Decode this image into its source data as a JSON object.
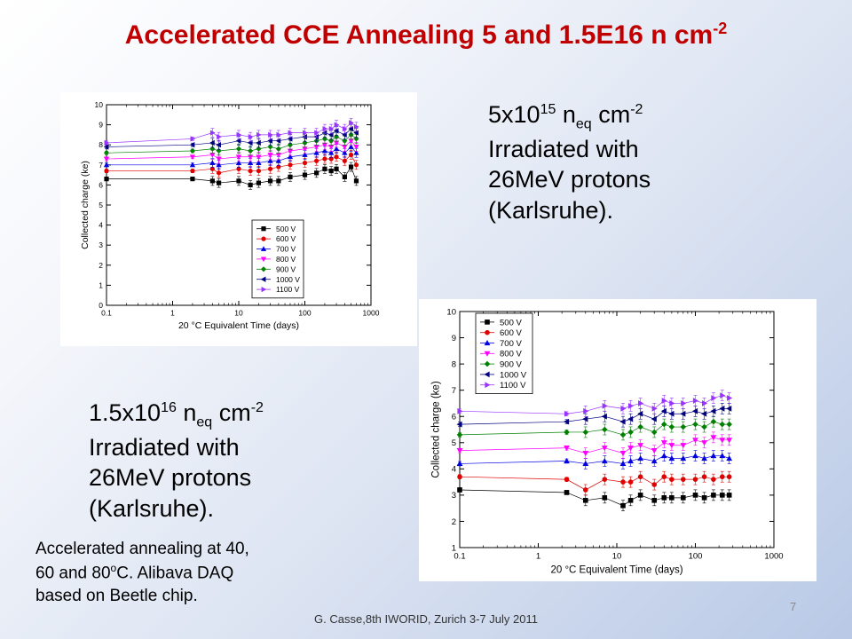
{
  "slide": {
    "title": "Accelerated CCE Annealing 5 and 1.5E16 n cm",
    "title_sup": "-2",
    "footer": "G. Casse,8th IWORID, Zurich 3-7 July 2011",
    "page_number": "7"
  },
  "note_5e15": {
    "coef": "5x10",
    "exp": "15",
    "n": " n",
    "eq": "eq",
    "unit": " cm",
    "unit_exp": "-2",
    "line2": "Irradiated with",
    "line3": "26MeV protons",
    "line4": "(Karlsruhe)."
  },
  "note_15e16": {
    "coef": "1.5x10",
    "exp": "16",
    "n": " n",
    "eq": "eq",
    "unit": " cm",
    "unit_exp": "-2",
    "line2": "Irradiated with",
    "line3": "26MeV protons",
    "line4": "(Karlsruhe)."
  },
  "note_annealing": {
    "line1": "Accelerated annealing at 40,",
    "line2a": "60 and 80",
    "line2_sup": "o",
    "line2b": "C. Alibava DAQ",
    "line3": "based on Beetle chip."
  },
  "chart_data": [
    {
      "type": "scatter",
      "title": "",
      "xlabel": "20 °C Equivalent Time (days)",
      "ylabel": "Collected charge (ke)",
      "xscale": "log",
      "xlim": [
        0.1,
        1000
      ],
      "ylim": [
        0,
        10
      ],
      "xticks": [
        "0.1",
        "1",
        "10",
        "100",
        "1000"
      ],
      "yticks": [
        "0",
        "1",
        "2",
        "3",
        "4",
        "5",
        "6",
        "7",
        "8",
        "9",
        "10"
      ],
      "legend_position": "bottom-right",
      "grid": false,
      "x": [
        0.1,
        2,
        4,
        5,
        10,
        15,
        20,
        30,
        40,
        60,
        100,
        150,
        200,
        250,
        300,
        400,
        500,
        600
      ],
      "series": [
        {
          "name": "500 V",
          "marker": "square",
          "color": "#000000",
          "values": [
            6.3,
            6.3,
            6.2,
            6.1,
            6.2,
            6.0,
            6.1,
            6.2,
            6.2,
            6.4,
            6.5,
            6.6,
            6.8,
            6.7,
            6.8,
            6.4,
            6.9,
            6.2
          ]
        },
        {
          "name": "600 V",
          "marker": "circle",
          "color": "#e00000",
          "values": [
            6.7,
            6.7,
            6.8,
            6.6,
            6.8,
            6.7,
            6.7,
            6.8,
            6.9,
            7.0,
            7.1,
            7.2,
            7.3,
            7.3,
            7.4,
            7.2,
            7.5,
            7.0
          ]
        },
        {
          "name": "700 V",
          "marker": "triangle-up",
          "color": "#0000e0",
          "values": [
            7.0,
            7.0,
            7.1,
            7.0,
            7.1,
            7.1,
            7.1,
            7.2,
            7.2,
            7.4,
            7.5,
            7.6,
            7.7,
            7.6,
            7.8,
            7.6,
            7.9,
            7.6
          ]
        },
        {
          "name": "800 V",
          "marker": "triangle-down",
          "color": "#ff00ff",
          "values": [
            7.3,
            7.4,
            7.5,
            7.3,
            7.4,
            7.4,
            7.4,
            7.5,
            7.5,
            7.7,
            7.8,
            7.9,
            8.0,
            7.9,
            8.1,
            7.9,
            8.2,
            7.9
          ]
        },
        {
          "name": "900 V",
          "marker": "diamond",
          "color": "#008000",
          "values": [
            7.6,
            7.7,
            7.8,
            7.7,
            7.8,
            7.7,
            7.8,
            7.9,
            7.8,
            8.0,
            8.1,
            8.2,
            8.3,
            8.2,
            8.4,
            8.2,
            8.5,
            8.3
          ]
        },
        {
          "name": "1000 V",
          "marker": "triangle-left",
          "color": "#000080",
          "values": [
            7.9,
            8.0,
            8.1,
            8.0,
            8.2,
            8.1,
            8.1,
            8.2,
            8.2,
            8.3,
            8.4,
            8.4,
            8.6,
            8.5,
            8.7,
            8.5,
            8.8,
            8.6
          ]
        },
        {
          "name": "1100 V",
          "marker": "triangle-right",
          "color": "#9933ff",
          "values": [
            8.1,
            8.3,
            8.6,
            8.4,
            8.5,
            8.4,
            8.5,
            8.5,
            8.5,
            8.6,
            8.6,
            8.6,
            8.8,
            8.8,
            9.0,
            8.8,
            9.1,
            8.9
          ]
        }
      ]
    },
    {
      "type": "scatter",
      "title": "",
      "xlabel": "20 °C Equivalent Time (days)",
      "ylabel": "Collected charge (ke)",
      "xscale": "log",
      "xlim": [
        0.1,
        1000
      ],
      "ylim": [
        1,
        10
      ],
      "xticks": [
        "0.1",
        "1",
        "10",
        "100",
        "1000"
      ],
      "yticks": [
        "1",
        "2",
        "3",
        "4",
        "5",
        "6",
        "7",
        "8",
        "9",
        "10"
      ],
      "legend_position": "top-left",
      "grid": false,
      "x": [
        0.1,
        2.3,
        4,
        7,
        12,
        15,
        20,
        30,
        40,
        50,
        70,
        100,
        130,
        170,
        220,
        270
      ],
      "series": [
        {
          "name": "500 V",
          "marker": "square",
          "color": "#000000",
          "values": [
            3.2,
            3.1,
            2.8,
            2.9,
            2.6,
            2.8,
            3.0,
            2.8,
            2.9,
            2.9,
            2.9,
            3.0,
            2.9,
            3.0,
            3.0,
            3.0
          ]
        },
        {
          "name": "600 V",
          "marker": "circle",
          "color": "#e00000",
          "values": [
            3.7,
            3.6,
            3.2,
            3.6,
            3.5,
            3.5,
            3.7,
            3.4,
            3.7,
            3.6,
            3.6,
            3.6,
            3.7,
            3.6,
            3.7,
            3.7
          ]
        },
        {
          "name": "700 V",
          "marker": "triangle-up",
          "color": "#0000e0",
          "values": [
            4.2,
            4.3,
            4.2,
            4.3,
            4.2,
            4.3,
            4.4,
            4.3,
            4.5,
            4.4,
            4.4,
            4.5,
            4.4,
            4.5,
            4.5,
            4.4
          ]
        },
        {
          "name": "800 V",
          "marker": "triangle-down",
          "color": "#ff00ff",
          "values": [
            4.7,
            4.8,
            4.6,
            4.8,
            4.6,
            4.8,
            4.9,
            4.7,
            5.0,
            4.9,
            4.9,
            5.1,
            5.0,
            5.2,
            5.1,
            5.1
          ]
        },
        {
          "name": "900 V",
          "marker": "diamond",
          "color": "#008000",
          "values": [
            5.3,
            5.4,
            5.4,
            5.5,
            5.3,
            5.4,
            5.6,
            5.4,
            5.7,
            5.6,
            5.6,
            5.7,
            5.6,
            5.8,
            5.7,
            5.7
          ]
        },
        {
          "name": "1000 V",
          "marker": "triangle-left",
          "color": "#000080",
          "values": [
            5.7,
            5.8,
            5.9,
            6.0,
            5.8,
            5.9,
            6.1,
            5.9,
            6.2,
            6.1,
            6.1,
            6.2,
            6.1,
            6.2,
            6.3,
            6.3
          ]
        },
        {
          "name": "1100 V",
          "marker": "triangle-right",
          "color": "#9933ff",
          "values": [
            6.2,
            6.1,
            6.2,
            6.4,
            6.3,
            6.4,
            6.5,
            6.3,
            6.6,
            6.5,
            6.5,
            6.6,
            6.5,
            6.7,
            6.8,
            6.7
          ]
        }
      ]
    }
  ]
}
